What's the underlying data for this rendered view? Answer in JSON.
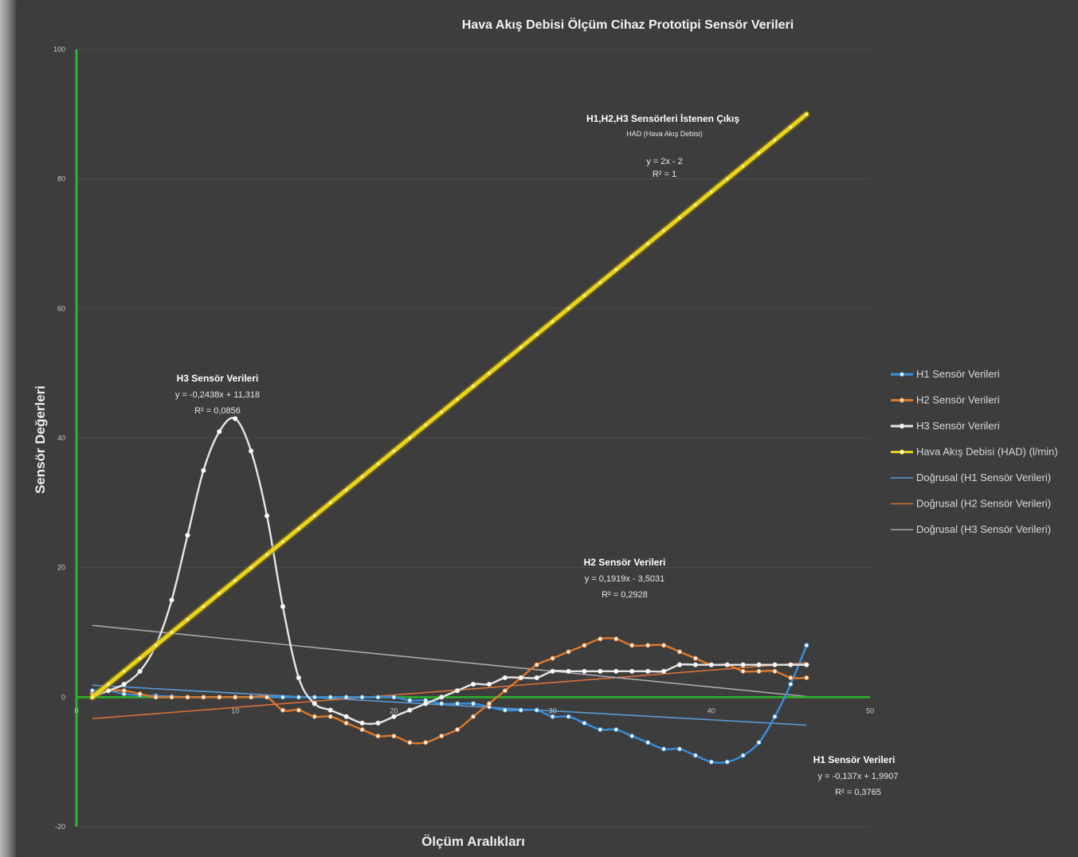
{
  "chart_data": {
    "type": "line",
    "title": "Hava Akış Debisi Ölçüm Cihaz Prototipi Sensör Verileri",
    "xlabel": "Ölçüm Aralıkları",
    "ylabel": "Sensör Değerleri",
    "xlim": [
      0,
      50
    ],
    "ylim": [
      -20,
      100
    ],
    "x_ticks": [
      "0",
      "10",
      "20",
      "30",
      "40",
      "50"
    ],
    "y_ticks": [
      "-20",
      "0",
      "20",
      "40",
      "60",
      "80",
      "100"
    ],
    "grid": "horizontal",
    "legend_position": "right",
    "x": [
      1,
      2,
      3,
      4,
      5,
      6,
      7,
      8,
      9,
      10,
      11,
      12,
      13,
      14,
      15,
      16,
      17,
      18,
      19,
      20,
      21,
      22,
      23,
      24,
      25,
      26,
      27,
      28,
      29,
      30,
      31,
      32,
      33,
      34,
      35,
      36,
      37,
      38,
      39,
      40,
      41,
      42,
      43,
      44,
      45,
      46
    ],
    "series": [
      {
        "name": "H1 Sensör Verileri",
        "color": "#3a8fde",
        "marker": true,
        "values": [
          1,
          1,
          0.5,
          0.3,
          0.2,
          0.1,
          0,
          0,
          0,
          0,
          0,
          0,
          0,
          0,
          0,
          0,
          0,
          0,
          0,
          0,
          -0.5,
          -0.5,
          -1,
          -1,
          -1,
          -1.5,
          -2,
          -2,
          -2,
          -3,
          -3,
          -4,
          -5,
          -5,
          -6,
          -7,
          -8,
          -8,
          -9,
          -10,
          -10,
          -9,
          -7,
          -3,
          2,
          8
        ]
      },
      {
        "name": "H2 Sensör Verileri",
        "color": "#e0782a",
        "marker": true,
        "values": [
          0.5,
          1,
          1,
          0.5,
          0,
          0,
          0,
          0,
          0,
          0,
          0,
          0,
          -2,
          -2,
          -3,
          -3,
          -4,
          -5,
          -6,
          -6,
          -7,
          -7,
          -6,
          -5,
          -3,
          -1,
          1,
          3,
          5,
          6,
          7,
          8,
          9,
          9,
          8,
          8,
          8,
          7,
          6,
          5,
          5,
          4,
          4,
          4,
          3,
          3
        ]
      },
      {
        "name": "H3 Sensör Verileri",
        "color": "#e6e6e6",
        "marker": true,
        "values": [
          0,
          1,
          2,
          4,
          8,
          15,
          25,
          35,
          41,
          43,
          38,
          28,
          14,
          3,
          -1,
          -2,
          -3,
          -4,
          -4,
          -3,
          -2,
          -1,
          0,
          1,
          2,
          2,
          3,
          3,
          3,
          4,
          4,
          4,
          4,
          4,
          4,
          4,
          4,
          5,
          5,
          5,
          5,
          5,
          5,
          5,
          5,
          5
        ]
      },
      {
        "name": "Hava Akış Debisi (HAD) (l/min)",
        "color": "#e9d21c",
        "marker": true,
        "values": [
          0,
          2,
          4,
          6,
          8,
          10,
          12,
          14,
          16,
          18,
          20,
          22,
          24,
          26,
          28,
          30,
          32,
          34,
          36,
          38,
          40,
          42,
          44,
          46,
          48,
          50,
          52,
          54,
          56,
          58,
          60,
          62,
          64,
          66,
          68,
          70,
          72,
          74,
          76,
          78,
          80,
          82,
          84,
          86,
          88,
          90
        ]
      }
    ],
    "trendlines": [
      {
        "name": "Doğrusal (H1 Sensör Verileri)",
        "color": "#5b9ad6",
        "equation": "y = -0,137x + 1,9907",
        "r2": "R² = 0,3765",
        "slope": -0.137,
        "intercept": 1.9907
      },
      {
        "name": "Doğrusal (H2 Sensör Verileri)",
        "color": "#d8713a",
        "equation": "y = 0,1919x - 3,5031",
        "r2": "R² = 0,2928",
        "slope": 0.1919,
        "intercept": -3.5031
      },
      {
        "name": "Doğrusal (H3 Sensör Verileri)",
        "color": "#a9a9a9",
        "equation": "y = -0,2438x + 11,318",
        "r2": "R² = 0,0856",
        "slope": -0.2438,
        "intercept": 11.318
      }
    ],
    "annotations": {
      "h3": {
        "title": "H3 Sensör Verileri",
        "equation": "y = -0,2438x + 11,318",
        "r2": "R² = 0,0856"
      },
      "h2": {
        "title": "H2 Sensör Verileri",
        "equation": "y = 0,1919x - 3,5031",
        "r2": "R² = 0,2928"
      },
      "h1": {
        "title": "H1 Sensör Verileri",
        "equation": "y = -0,137x + 1,9907",
        "r2": "R² = 0,3765"
      },
      "had": {
        "title": "H1,H2,H3 Sensörleri İstenen Çıkış",
        "subtitle": "HAD (Hava Akış Debisi)",
        "equation": "y = 2x - 2",
        "r2": "R² = 1"
      }
    }
  }
}
